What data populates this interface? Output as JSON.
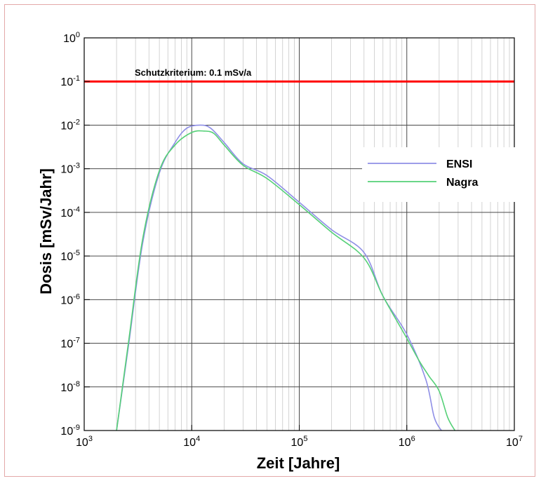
{
  "chart_data": {
    "type": "line",
    "xlabel": "Zeit [Jahre]",
    "ylabel": "Dosis [mSv/Jahr]",
    "xscale": "log",
    "yscale": "log",
    "xlim": [
      1000,
      10000000
    ],
    "ylim": [
      1e-09,
      1
    ],
    "grid": true,
    "legend_position": "right",
    "x_ticks": [
      {
        "base": "10",
        "exp": "3"
      },
      {
        "base": "10",
        "exp": "4"
      },
      {
        "base": "10",
        "exp": "5"
      },
      {
        "base": "10",
        "exp": "6"
      },
      {
        "base": "10",
        "exp": "7"
      }
    ],
    "y_ticks": [
      {
        "base": "10",
        "exp": "-9"
      },
      {
        "base": "10",
        "exp": "-8"
      },
      {
        "base": "10",
        "exp": "-7"
      },
      {
        "base": "10",
        "exp": "-6"
      },
      {
        "base": "10",
        "exp": "-5"
      },
      {
        "base": "10",
        "exp": "-4"
      },
      {
        "base": "10",
        "exp": "-3"
      },
      {
        "base": "10",
        "exp": "-2"
      },
      {
        "base": "10",
        "exp": "-1"
      },
      {
        "base": "10",
        "exp": "0"
      }
    ],
    "reference_line": {
      "label": "Schutzkriterium: 0.1 mSv/a",
      "y": 0.1,
      "color": "#ff0000"
    },
    "series": [
      {
        "name": "ENSI",
        "color": "#8f8fe6",
        "x": [
          2000,
          2600,
          3500,
          5000,
          7000,
          9000,
          12000,
          15000,
          20000,
          30000,
          50000,
          100000,
          200000,
          400000,
          600000,
          1000000,
          1500000,
          1800000,
          2100000
        ],
        "y": [
          1e-09,
          1e-07,
          2e-05,
          0.0008,
          0.004,
          0.0085,
          0.01,
          0.0085,
          0.004,
          0.0013,
          0.0007,
          0.00017,
          4e-05,
          1.2e-05,
          1.2e-06,
          1.6e-07,
          1.5e-08,
          2e-09,
          1e-09
        ]
      },
      {
        "name": "Nagra",
        "color": "#55d077",
        "x": [
          2000,
          2600,
          3500,
          5000,
          7000,
          10000,
          13000,
          16000,
          20000,
          30000,
          50000,
          100000,
          200000,
          400000,
          600000,
          1000000,
          1300000,
          1600000,
          2000000,
          2400000,
          2800000
        ],
        "y": [
          1e-09,
          1.2e-07,
          2.5e-05,
          0.0009,
          0.0035,
          0.0068,
          0.0073,
          0.0065,
          0.0035,
          0.0012,
          0.0006,
          0.00015,
          3.5e-05,
          9e-06,
          1.2e-06,
          1.3e-07,
          4e-08,
          1.8e-08,
          8e-09,
          2e-09,
          1e-09
        ]
      }
    ]
  }
}
